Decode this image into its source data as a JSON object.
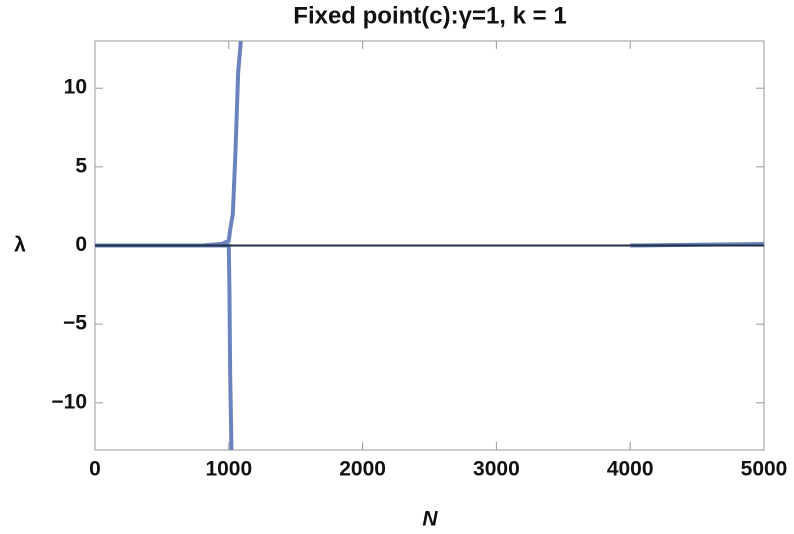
{
  "chart_data": {
    "type": "line",
    "title": "Fixed point(c):γ=1, k = 1",
    "xlabel": "N",
    "ylabel": "λ",
    "xlim": [
      0,
      5000
    ],
    "ylim": [
      -13,
      13
    ],
    "xticks": [
      0,
      1000,
      2000,
      3000,
      4000,
      5000
    ],
    "yticks": [
      {
        "value": -10,
        "label": "−10"
      },
      {
        "value": -5,
        "label": "−5"
      },
      0,
      5,
      10
    ],
    "series": [
      {
        "color": "#6b83bd",
        "x": [
          0,
          800,
          950,
          1000,
          1010,
          1030,
          1050,
          1070,
          1090
        ],
        "values": [
          0,
          0,
          0.1,
          0.3,
          1,
          2,
          6,
          11,
          13
        ]
      },
      {
        "color": "#6b83bd",
        "x": [
          0,
          1000,
          1005,
          1010,
          1020
        ],
        "values": [
          0,
          0,
          -3,
          -8,
          -13
        ]
      },
      {
        "color": "#6b83bd",
        "x": [
          4000,
          4500,
          5000
        ],
        "values": [
          0,
          0.05,
          0.1
        ]
      }
    ]
  }
}
